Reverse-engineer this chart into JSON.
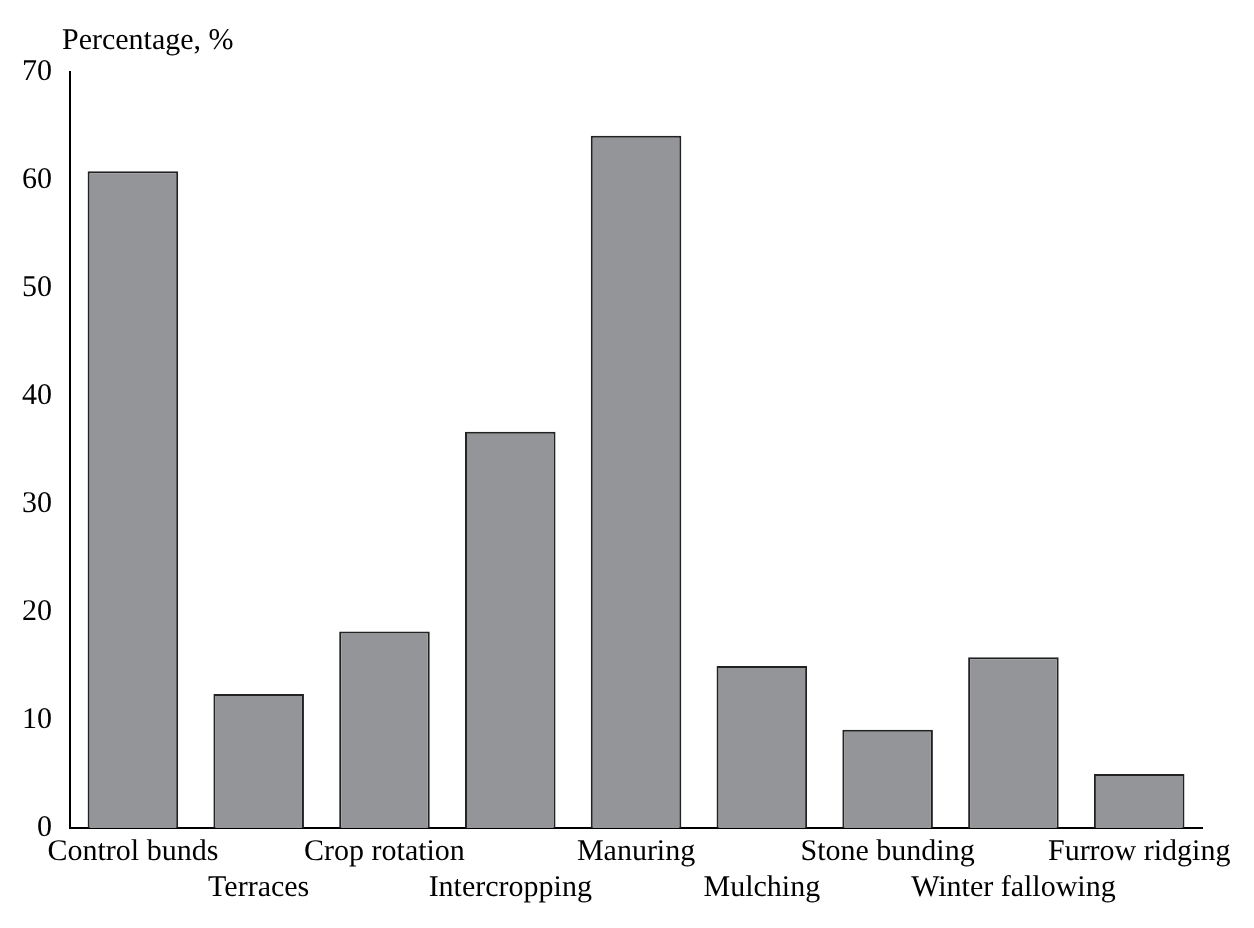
{
  "chart_data": {
    "type": "bar",
    "ylabel": "Percentage, %",
    "categories": [
      "Control bunds",
      "Terraces",
      "Crop rotation",
      "Intercropping",
      "Manuring",
      "Mulching",
      "Stone bunding",
      "Winter fallowing",
      "Furrow ridging"
    ],
    "values": [
      60.8,
      12.4,
      18.2,
      36.7,
      64.1,
      15.0,
      9.1,
      15.8,
      5.0
    ],
    "color": "#939598",
    "ylim": [
      0,
      70
    ],
    "yticks": [
      0,
      10,
      20,
      30,
      40,
      50,
      60,
      70
    ],
    "grid": false
  }
}
